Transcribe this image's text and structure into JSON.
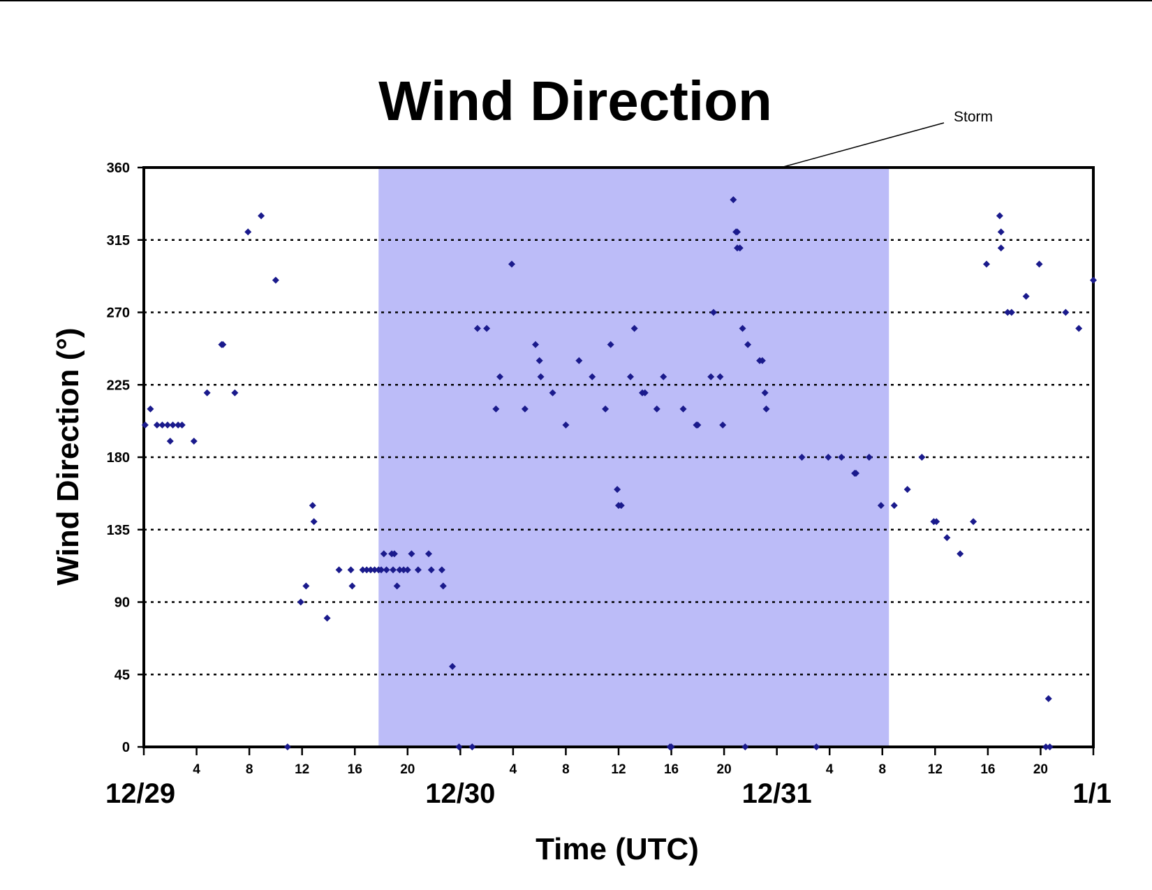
{
  "chart_data": {
    "type": "scatter",
    "title": "Wind Direction",
    "xlabel": "Time (UTC)",
    "ylabel": "Wind Direction (°)",
    "ylim": [
      0,
      360
    ],
    "yticks": [
      0,
      45,
      90,
      135,
      180,
      225,
      270,
      315,
      360
    ],
    "xlim": [
      0,
      72
    ],
    "x_unit": "hours since 12/29 00 UTC",
    "hour_ticks": [
      {
        "x": 4,
        "label": "4"
      },
      {
        "x": 8,
        "label": "8"
      },
      {
        "x": 12,
        "label": "12"
      },
      {
        "x": 16,
        "label": "16"
      },
      {
        "x": 20,
        "label": "20"
      },
      {
        "x": 28,
        "label": "4"
      },
      {
        "x": 32,
        "label": "8"
      },
      {
        "x": 36,
        "label": "12"
      },
      {
        "x": 40,
        "label": "16"
      },
      {
        "x": 44,
        "label": "20"
      },
      {
        "x": 52,
        "label": "4"
      },
      {
        "x": 56,
        "label": "8"
      },
      {
        "x": 60,
        "label": "12"
      },
      {
        "x": 64,
        "label": "16"
      },
      {
        "x": 68,
        "label": "20"
      }
    ],
    "date_labels": [
      {
        "x": 0,
        "label": "12/29"
      },
      {
        "x": 24,
        "label": "12/30"
      },
      {
        "x": 48,
        "label": "12/31"
      },
      {
        "x": 72,
        "label": "1/1"
      }
    ],
    "grid": "horizontal dotted",
    "marker_color": "#1a1a8c",
    "storm_band": {
      "x_start": 17.8,
      "x_end": 56.5,
      "color": "#bcbcf8",
      "label": "Storm"
    },
    "series": [
      {
        "points": [
          [
            0.1,
            200
          ],
          [
            0.5,
            210
          ],
          [
            1.0,
            200
          ],
          [
            1.4,
            200
          ],
          [
            1.8,
            200
          ],
          [
            2.0,
            190
          ],
          [
            2.2,
            200
          ],
          [
            2.6,
            200
          ],
          [
            2.9,
            200
          ],
          [
            3.8,
            190
          ],
          [
            4.8,
            220
          ],
          [
            5.9,
            250
          ],
          [
            6.0,
            250
          ],
          [
            6.9,
            220
          ],
          [
            7.9,
            320
          ],
          [
            8.9,
            330
          ],
          [
            10.0,
            290
          ],
          [
            10.9,
            0
          ],
          [
            11.9,
            90
          ],
          [
            12.3,
            100
          ],
          [
            12.8,
            150
          ],
          [
            12.9,
            140
          ],
          [
            13.9,
            80
          ],
          [
            14.8,
            110
          ],
          [
            15.7,
            110
          ],
          [
            15.8,
            100
          ],
          [
            16.6,
            110
          ],
          [
            16.9,
            110
          ],
          [
            17.2,
            110
          ],
          [
            17.5,
            110
          ],
          [
            17.8,
            110
          ],
          [
            18.0,
            110
          ],
          [
            18.2,
            120
          ],
          [
            18.4,
            110
          ],
          [
            18.8,
            120
          ],
          [
            18.9,
            110
          ],
          [
            19.0,
            120
          ],
          [
            19.2,
            100
          ],
          [
            19.4,
            110
          ],
          [
            19.7,
            110
          ],
          [
            20.0,
            110
          ],
          [
            20.3,
            120
          ],
          [
            20.8,
            110
          ],
          [
            21.6,
            120
          ],
          [
            21.8,
            110
          ],
          [
            22.6,
            110
          ],
          [
            22.7,
            100
          ],
          [
            23.4,
            50
          ],
          [
            23.9,
            0
          ],
          [
            24.9,
            0
          ],
          [
            25.3,
            260
          ],
          [
            26.0,
            260
          ],
          [
            26.7,
            210
          ],
          [
            27.0,
            230
          ],
          [
            27.9,
            300
          ],
          [
            28.9,
            210
          ],
          [
            29.7,
            250
          ],
          [
            30.0,
            240
          ],
          [
            30.1,
            230
          ],
          [
            31.0,
            220
          ],
          [
            32.0,
            200
          ],
          [
            33.0,
            240
          ],
          [
            34.0,
            230
          ],
          [
            35.0,
            210
          ],
          [
            35.4,
            250
          ],
          [
            35.9,
            160
          ],
          [
            36.0,
            150
          ],
          [
            36.2,
            150
          ],
          [
            36.9,
            230
          ],
          [
            37.2,
            260
          ],
          [
            37.8,
            220
          ],
          [
            38.0,
            220
          ],
          [
            38.9,
            210
          ],
          [
            39.4,
            230
          ],
          [
            39.9,
            0
          ],
          [
            40.0,
            0
          ],
          [
            40.9,
            210
          ],
          [
            41.9,
            200
          ],
          [
            42.0,
            200
          ],
          [
            43.0,
            230
          ],
          [
            43.2,
            270
          ],
          [
            43.7,
            230
          ],
          [
            43.9,
            200
          ],
          [
            44.7,
            340
          ],
          [
            44.9,
            320
          ],
          [
            45.0,
            320
          ],
          [
            45.0,
            310
          ],
          [
            45.2,
            310
          ],
          [
            45.4,
            260
          ],
          [
            45.6,
            0
          ],
          [
            45.8,
            250
          ],
          [
            46.7,
            240
          ],
          [
            46.9,
            240
          ],
          [
            47.1,
            220
          ],
          [
            47.2,
            210
          ],
          [
            49.9,
            180
          ],
          [
            51.0,
            0
          ],
          [
            51.9,
            180
          ],
          [
            52.9,
            180
          ],
          [
            53.9,
            170
          ],
          [
            54.0,
            170
          ],
          [
            55.0,
            180
          ],
          [
            55.9,
            150
          ],
          [
            56.9,
            150
          ],
          [
            57.9,
            160
          ],
          [
            59.0,
            180
          ],
          [
            59.9,
            140
          ],
          [
            60.1,
            140
          ],
          [
            60.9,
            130
          ],
          [
            61.9,
            120
          ],
          [
            62.9,
            140
          ],
          [
            63.9,
            300
          ],
          [
            64.9,
            330
          ],
          [
            65.0,
            320
          ],
          [
            65.0,
            310
          ],
          [
            65.5,
            270
          ],
          [
            65.8,
            270
          ],
          [
            66.9,
            280
          ],
          [
            67.9,
            300
          ],
          [
            68.4,
            0
          ],
          [
            68.6,
            30
          ],
          [
            68.7,
            0
          ],
          [
            69.9,
            270
          ],
          [
            70.9,
            260
          ],
          [
            72.0,
            290
          ]
        ]
      }
    ]
  }
}
